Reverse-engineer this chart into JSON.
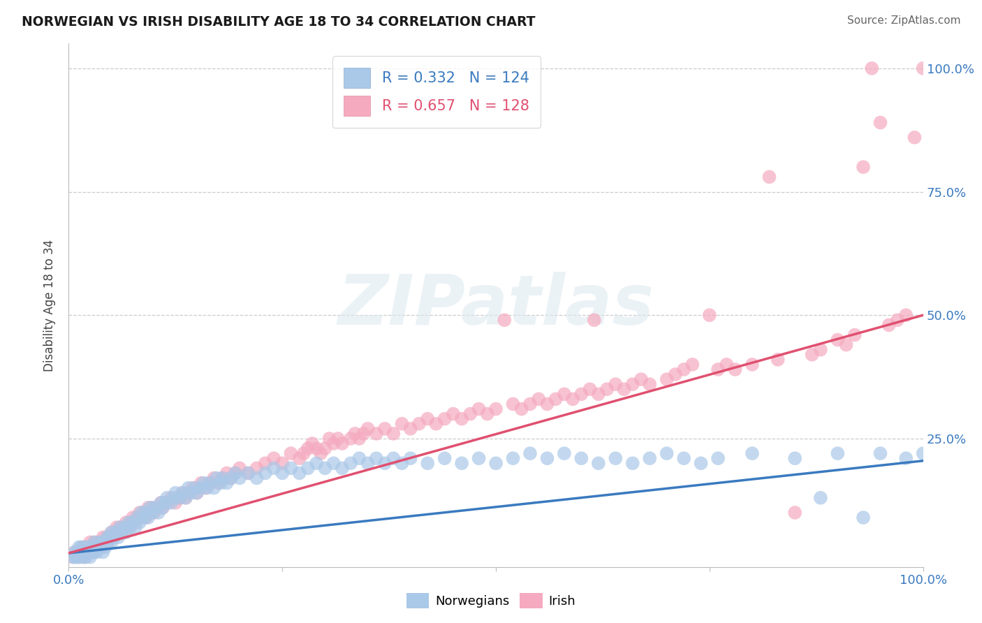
{
  "title": "NORWEGIAN VS IRISH DISABILITY AGE 18 TO 34 CORRELATION CHART",
  "source_text": "Source: ZipAtlas.com",
  "ylabel": "Disability Age 18 to 34",
  "xlim": [
    0.0,
    1.0
  ],
  "ylim": [
    -0.01,
    1.05
  ],
  "norwegian_R": "0.332",
  "norwegian_N": "124",
  "irish_R": "0.657",
  "irish_N": "128",
  "norwegian_color": "#aac8e8",
  "irish_color": "#f5aabf",
  "norwegian_line_color": "#3a7abf",
  "irish_line_color": "#e05070",
  "legend_label_norwegian": "Norwegians",
  "legend_label_irish": "Irish",
  "watermark_text": "ZIPatlas",
  "background_color": "#ffffff",
  "grid_color": "#cccccc",
  "norwegian_trendline": [
    [
      0.0,
      0.018
    ],
    [
      1.0,
      0.205
    ]
  ],
  "irish_trendline": [
    [
      0.0,
      0.018
    ],
    [
      1.0,
      0.5
    ]
  ],
  "norwegian_scatter": [
    [
      0.005,
      0.01
    ],
    [
      0.007,
      0.02
    ],
    [
      0.008,
      0.01
    ],
    [
      0.01,
      0.02
    ],
    [
      0.01,
      0.01
    ],
    [
      0.012,
      0.02
    ],
    [
      0.012,
      0.03
    ],
    [
      0.013,
      0.01
    ],
    [
      0.015,
      0.02
    ],
    [
      0.015,
      0.03
    ],
    [
      0.016,
      0.02
    ],
    [
      0.017,
      0.01
    ],
    [
      0.018,
      0.02
    ],
    [
      0.019,
      0.03
    ],
    [
      0.02,
      0.02
    ],
    [
      0.02,
      0.01
    ],
    [
      0.022,
      0.02
    ],
    [
      0.023,
      0.03
    ],
    [
      0.025,
      0.02
    ],
    [
      0.025,
      0.01
    ],
    [
      0.027,
      0.02
    ],
    [
      0.028,
      0.03
    ],
    [
      0.03,
      0.02
    ],
    [
      0.03,
      0.04
    ],
    [
      0.032,
      0.03
    ],
    [
      0.033,
      0.02
    ],
    [
      0.035,
      0.03
    ],
    [
      0.036,
      0.04
    ],
    [
      0.038,
      0.03
    ],
    [
      0.04,
      0.04
    ],
    [
      0.04,
      0.02
    ],
    [
      0.042,
      0.04
    ],
    [
      0.043,
      0.03
    ],
    [
      0.045,
      0.05
    ],
    [
      0.046,
      0.04
    ],
    [
      0.048,
      0.05
    ],
    [
      0.05,
      0.04
    ],
    [
      0.05,
      0.06
    ],
    [
      0.053,
      0.05
    ],
    [
      0.055,
      0.06
    ],
    [
      0.058,
      0.05
    ],
    [
      0.06,
      0.07
    ],
    [
      0.062,
      0.06
    ],
    [
      0.065,
      0.07
    ],
    [
      0.067,
      0.06
    ],
    [
      0.07,
      0.08
    ],
    [
      0.072,
      0.07
    ],
    [
      0.075,
      0.08
    ],
    [
      0.078,
      0.07
    ],
    [
      0.08,
      0.09
    ],
    [
      0.083,
      0.08
    ],
    [
      0.085,
      0.1
    ],
    [
      0.088,
      0.09
    ],
    [
      0.09,
      0.1
    ],
    [
      0.093,
      0.09
    ],
    [
      0.095,
      0.11
    ],
    [
      0.098,
      0.1
    ],
    [
      0.1,
      0.11
    ],
    [
      0.105,
      0.1
    ],
    [
      0.108,
      0.12
    ],
    [
      0.11,
      0.11
    ],
    [
      0.113,
      0.12
    ],
    [
      0.115,
      0.13
    ],
    [
      0.12,
      0.12
    ],
    [
      0.123,
      0.13
    ],
    [
      0.125,
      0.14
    ],
    [
      0.13,
      0.13
    ],
    [
      0.133,
      0.14
    ],
    [
      0.137,
      0.13
    ],
    [
      0.14,
      0.15
    ],
    [
      0.143,
      0.14
    ],
    [
      0.148,
      0.15
    ],
    [
      0.15,
      0.14
    ],
    [
      0.155,
      0.15
    ],
    [
      0.158,
      0.16
    ],
    [
      0.162,
      0.15
    ],
    [
      0.165,
      0.16
    ],
    [
      0.17,
      0.15
    ],
    [
      0.173,
      0.17
    ],
    [
      0.178,
      0.16
    ],
    [
      0.18,
      0.17
    ],
    [
      0.185,
      0.16
    ],
    [
      0.19,
      0.17
    ],
    [
      0.195,
      0.18
    ],
    [
      0.2,
      0.17
    ],
    [
      0.21,
      0.18
    ],
    [
      0.22,
      0.17
    ],
    [
      0.23,
      0.18
    ],
    [
      0.24,
      0.19
    ],
    [
      0.25,
      0.18
    ],
    [
      0.26,
      0.19
    ],
    [
      0.27,
      0.18
    ],
    [
      0.28,
      0.19
    ],
    [
      0.29,
      0.2
    ],
    [
      0.3,
      0.19
    ],
    [
      0.31,
      0.2
    ],
    [
      0.32,
      0.19
    ],
    [
      0.33,
      0.2
    ],
    [
      0.34,
      0.21
    ],
    [
      0.35,
      0.2
    ],
    [
      0.36,
      0.21
    ],
    [
      0.37,
      0.2
    ],
    [
      0.38,
      0.21
    ],
    [
      0.39,
      0.2
    ],
    [
      0.4,
      0.21
    ],
    [
      0.42,
      0.2
    ],
    [
      0.44,
      0.21
    ],
    [
      0.46,
      0.2
    ],
    [
      0.48,
      0.21
    ],
    [
      0.5,
      0.2
    ],
    [
      0.52,
      0.21
    ],
    [
      0.54,
      0.22
    ],
    [
      0.56,
      0.21
    ],
    [
      0.58,
      0.22
    ],
    [
      0.6,
      0.21
    ],
    [
      0.62,
      0.2
    ],
    [
      0.64,
      0.21
    ],
    [
      0.66,
      0.2
    ],
    [
      0.68,
      0.21
    ],
    [
      0.7,
      0.22
    ],
    [
      0.72,
      0.21
    ],
    [
      0.74,
      0.2
    ],
    [
      0.76,
      0.21
    ],
    [
      0.8,
      0.22
    ],
    [
      0.85,
      0.21
    ],
    [
      0.88,
      0.13
    ],
    [
      0.9,
      0.22
    ],
    [
      0.93,
      0.09
    ],
    [
      0.95,
      0.22
    ],
    [
      0.98,
      0.21
    ],
    [
      1.0,
      0.22
    ]
  ],
  "irish_scatter": [
    [
      0.005,
      0.01
    ],
    [
      0.007,
      0.02
    ],
    [
      0.01,
      0.02
    ],
    [
      0.012,
      0.01
    ],
    [
      0.013,
      0.02
    ],
    [
      0.015,
      0.02
    ],
    [
      0.016,
      0.03
    ],
    [
      0.017,
      0.02
    ],
    [
      0.018,
      0.01
    ],
    [
      0.02,
      0.02
    ],
    [
      0.02,
      0.03
    ],
    [
      0.022,
      0.02
    ],
    [
      0.023,
      0.03
    ],
    [
      0.025,
      0.02
    ],
    [
      0.025,
      0.04
    ],
    [
      0.027,
      0.03
    ],
    [
      0.028,
      0.02
    ],
    [
      0.03,
      0.03
    ],
    [
      0.03,
      0.04
    ],
    [
      0.033,
      0.03
    ],
    [
      0.035,
      0.04
    ],
    [
      0.036,
      0.03
    ],
    [
      0.038,
      0.04
    ],
    [
      0.04,
      0.05
    ],
    [
      0.042,
      0.04
    ],
    [
      0.044,
      0.05
    ],
    [
      0.046,
      0.04
    ],
    [
      0.048,
      0.05
    ],
    [
      0.05,
      0.06
    ],
    [
      0.052,
      0.05
    ],
    [
      0.054,
      0.06
    ],
    [
      0.056,
      0.07
    ],
    [
      0.058,
      0.06
    ],
    [
      0.06,
      0.07
    ],
    [
      0.062,
      0.06
    ],
    [
      0.065,
      0.07
    ],
    [
      0.067,
      0.08
    ],
    [
      0.07,
      0.07
    ],
    [
      0.072,
      0.08
    ],
    [
      0.075,
      0.09
    ],
    [
      0.078,
      0.08
    ],
    [
      0.08,
      0.09
    ],
    [
      0.083,
      0.1
    ],
    [
      0.085,
      0.09
    ],
    [
      0.088,
      0.1
    ],
    [
      0.09,
      0.09
    ],
    [
      0.093,
      0.11
    ],
    [
      0.095,
      0.1
    ],
    [
      0.098,
      0.11
    ],
    [
      0.1,
      0.1
    ],
    [
      0.105,
      0.11
    ],
    [
      0.108,
      0.12
    ],
    [
      0.11,
      0.11
    ],
    [
      0.115,
      0.12
    ],
    [
      0.12,
      0.13
    ],
    [
      0.125,
      0.12
    ],
    [
      0.13,
      0.13
    ],
    [
      0.133,
      0.14
    ],
    [
      0.137,
      0.13
    ],
    [
      0.14,
      0.14
    ],
    [
      0.145,
      0.15
    ],
    [
      0.15,
      0.14
    ],
    [
      0.155,
      0.16
    ],
    [
      0.16,
      0.15
    ],
    [
      0.165,
      0.16
    ],
    [
      0.17,
      0.17
    ],
    [
      0.175,
      0.16
    ],
    [
      0.18,
      0.17
    ],
    [
      0.185,
      0.18
    ],
    [
      0.19,
      0.17
    ],
    [
      0.195,
      0.18
    ],
    [
      0.2,
      0.19
    ],
    [
      0.21,
      0.18
    ],
    [
      0.22,
      0.19
    ],
    [
      0.23,
      0.2
    ],
    [
      0.24,
      0.21
    ],
    [
      0.25,
      0.2
    ],
    [
      0.26,
      0.22
    ],
    [
      0.27,
      0.21
    ],
    [
      0.275,
      0.22
    ],
    [
      0.28,
      0.23
    ],
    [
      0.285,
      0.24
    ],
    [
      0.29,
      0.23
    ],
    [
      0.295,
      0.22
    ],
    [
      0.3,
      0.23
    ],
    [
      0.305,
      0.25
    ],
    [
      0.31,
      0.24
    ],
    [
      0.315,
      0.25
    ],
    [
      0.32,
      0.24
    ],
    [
      0.33,
      0.25
    ],
    [
      0.335,
      0.26
    ],
    [
      0.34,
      0.25
    ],
    [
      0.345,
      0.26
    ],
    [
      0.35,
      0.27
    ],
    [
      0.36,
      0.26
    ],
    [
      0.37,
      0.27
    ],
    [
      0.38,
      0.26
    ],
    [
      0.39,
      0.28
    ],
    [
      0.4,
      0.27
    ],
    [
      0.41,
      0.28
    ],
    [
      0.42,
      0.29
    ],
    [
      0.43,
      0.28
    ],
    [
      0.44,
      0.29
    ],
    [
      0.45,
      0.3
    ],
    [
      0.46,
      0.29
    ],
    [
      0.47,
      0.3
    ],
    [
      0.48,
      0.31
    ],
    [
      0.49,
      0.3
    ],
    [
      0.5,
      0.31
    ],
    [
      0.51,
      0.49
    ],
    [
      0.52,
      0.32
    ],
    [
      0.53,
      0.31
    ],
    [
      0.54,
      0.32
    ],
    [
      0.55,
      0.33
    ],
    [
      0.56,
      0.32
    ],
    [
      0.57,
      0.33
    ],
    [
      0.58,
      0.34
    ],
    [
      0.59,
      0.33
    ],
    [
      0.6,
      0.34
    ],
    [
      0.61,
      0.35
    ],
    [
      0.615,
      0.49
    ],
    [
      0.62,
      0.34
    ],
    [
      0.63,
      0.35
    ],
    [
      0.64,
      0.36
    ],
    [
      0.65,
      0.35
    ],
    [
      0.66,
      0.36
    ],
    [
      0.67,
      0.37
    ],
    [
      0.68,
      0.36
    ],
    [
      0.7,
      0.37
    ],
    [
      0.71,
      0.38
    ],
    [
      0.72,
      0.39
    ],
    [
      0.73,
      0.4
    ],
    [
      0.75,
      0.5
    ],
    [
      0.76,
      0.39
    ],
    [
      0.77,
      0.4
    ],
    [
      0.78,
      0.39
    ],
    [
      0.8,
      0.4
    ],
    [
      0.82,
      0.78
    ],
    [
      0.83,
      0.41
    ],
    [
      0.85,
      0.1
    ],
    [
      0.87,
      0.42
    ],
    [
      0.88,
      0.43
    ],
    [
      0.9,
      0.45
    ],
    [
      0.91,
      0.44
    ],
    [
      0.92,
      0.46
    ],
    [
      0.93,
      0.8
    ],
    [
      0.94,
      1.0
    ],
    [
      0.95,
      0.89
    ],
    [
      0.96,
      0.48
    ],
    [
      0.97,
      0.49
    ],
    [
      0.98,
      0.5
    ],
    [
      0.99,
      0.86
    ],
    [
      1.0,
      1.0
    ]
  ]
}
